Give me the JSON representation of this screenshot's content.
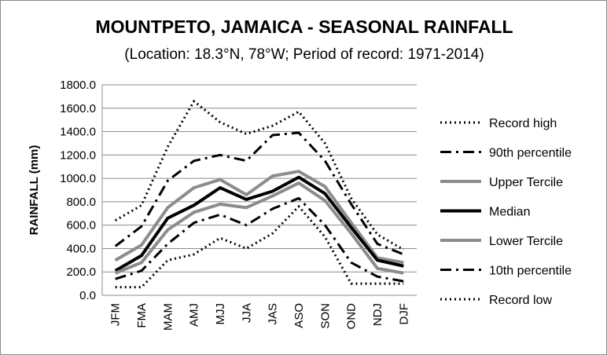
{
  "chart_data": {
    "type": "line",
    "title": "MOUNTPETO,  JAMAICA - SEASONAL RAINFALL",
    "subtitle": "(Location: 18.3°N, 78°W; Period of record: 1971-2014)",
    "xlabel": "",
    "ylabel": "RAINFALL (mm)",
    "ylim": [
      0,
      1800
    ],
    "yticks": [
      "0.0",
      "200.0",
      "400.0",
      "600.0",
      "800.0",
      "1000.0",
      "1200.0",
      "1400.0",
      "1600.0",
      "1800.0"
    ],
    "categories": [
      "JFM",
      "FMA",
      "MAM",
      "AMJ",
      "MJJ",
      "JJA",
      "JAS",
      "ASO",
      "SON",
      "OND",
      "NDJ",
      "DJF"
    ],
    "grid": "horizontal",
    "legend_position": "right",
    "series": [
      {
        "name": "Record high",
        "style": "dotted",
        "color": "#000000",
        "values": [
          640,
          770,
          1270,
          1660,
          1480,
          1380,
          1450,
          1570,
          1300,
          830,
          520,
          390
        ]
      },
      {
        "name": "90th percentile",
        "style": "dashdot",
        "color": "#000000",
        "values": [
          420,
          590,
          980,
          1150,
          1200,
          1150,
          1370,
          1390,
          1150,
          780,
          440,
          350
        ]
      },
      {
        "name": "Upper Tercile",
        "style": "solid-gray",
        "color": "#8c8c8c",
        "values": [
          300,
          430,
          750,
          920,
          990,
          860,
          1020,
          1060,
          930,
          620,
          320,
          280
        ]
      },
      {
        "name": "Median",
        "style": "solid-black",
        "color": "#000000",
        "values": [
          210,
          340,
          660,
          770,
          920,
          820,
          890,
          1010,
          870,
          580,
          300,
          250
        ]
      },
      {
        "name": "Lower Tercile",
        "style": "solid-gray",
        "color": "#8c8c8c",
        "values": [
          190,
          280,
          560,
          710,
          780,
          750,
          850,
          960,
          810,
          530,
          230,
          190
        ]
      },
      {
        "name": "10th percentile",
        "style": "dashdot",
        "color": "#000000",
        "values": [
          140,
          210,
          440,
          620,
          690,
          600,
          740,
          830,
          600,
          280,
          160,
          120
        ]
      },
      {
        "name": "Record low",
        "style": "dotted",
        "color": "#000000",
        "values": [
          70,
          70,
          300,
          350,
          490,
          400,
          530,
          760,
          500,
          100,
          100,
          100
        ]
      }
    ]
  }
}
